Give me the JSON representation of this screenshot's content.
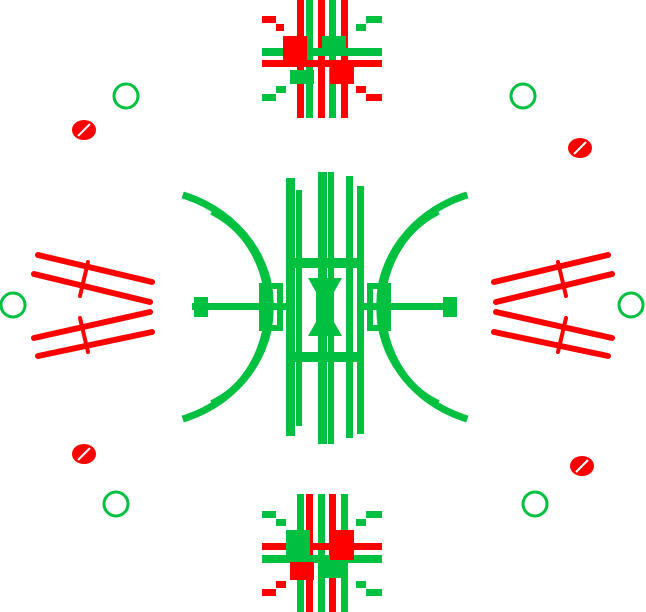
{
  "colors": {
    "background": "#ffffff",
    "green": "#00c040",
    "red": "#ff0000"
  },
  "glyphs": {
    "center": "green-pixel-symmetric-figure",
    "top": "red-green-pixel-cross",
    "bottom": "red-green-pixel-cross",
    "left": "red-diagonal-bars",
    "right": "red-diagonal-bars",
    "corners": "green-ring-and-red-dot"
  }
}
